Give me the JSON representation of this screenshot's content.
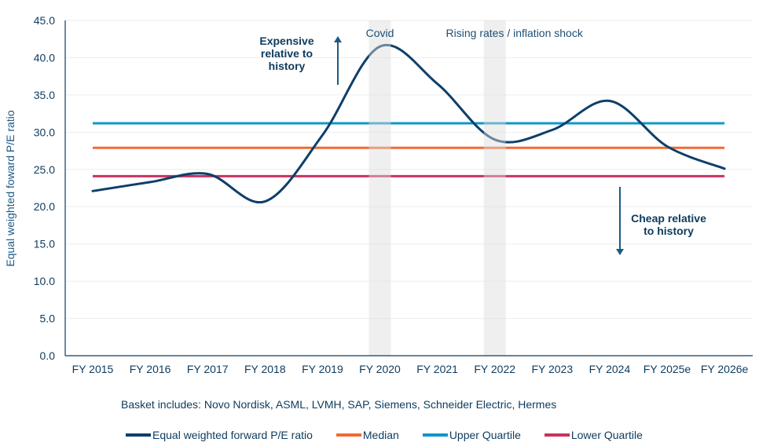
{
  "chart_data": {
    "type": "line",
    "title": "",
    "xlabel": "",
    "ylabel": "Equal weighted foward P/E ratio",
    "ylim": [
      0,
      45
    ],
    "yticks": [
      "0.0",
      "5.0",
      "10.0",
      "15.0",
      "20.0",
      "25.0",
      "30.0",
      "35.0",
      "40.0",
      "45.0"
    ],
    "ytick_values": [
      0,
      5,
      10,
      15,
      20,
      25,
      30,
      35,
      40,
      45
    ],
    "grid": true,
    "categories": [
      "FY 2015",
      "FY 2016",
      "FY 2017",
      "FY 2018",
      "FY 2019",
      "FY 2020",
      "FY 2021",
      "FY 2022",
      "FY 2023",
      "FY 2024",
      "FY 2025e",
      "FY 2026e"
    ],
    "series": [
      {
        "name": "Equal weighted forward P/E ratio",
        "color": "#0d3f6b",
        "smooth": true,
        "values": [
          22.1,
          23.3,
          24.4,
          20.7,
          29.6,
          41.5,
          36.5,
          29.0,
          30.3,
          34.2,
          28.1,
          25.1
        ]
      },
      {
        "name": "Median",
        "color": "#f26a35",
        "values": [
          27.9,
          27.9,
          27.9,
          27.9,
          27.9,
          27.9,
          27.9,
          27.9,
          27.9,
          27.9,
          27.9,
          27.9
        ]
      },
      {
        "name": "Upper Quartile",
        "color": "#0f97c8",
        "values": [
          31.2,
          31.2,
          31.2,
          31.2,
          31.2,
          31.2,
          31.2,
          31.2,
          31.2,
          31.2,
          31.2,
          31.2
        ]
      },
      {
        "name": "Lower Quartile",
        "color": "#c8325f",
        "values": [
          24.1,
          24.1,
          24.1,
          24.1,
          24.1,
          24.1,
          24.1,
          24.1,
          24.1,
          24.1,
          24.1,
          24.1
        ]
      }
    ],
    "shaded_periods": [
      {
        "label": "Covid",
        "category": "FY 2020"
      },
      {
        "label": "Rising rates / inflation shock",
        "category": "FY 2022"
      }
    ],
    "annotations": [
      {
        "text_lines": [
          "Expensive",
          "relative to",
          "history"
        ],
        "arrow": "up"
      },
      {
        "text_lines": [
          "Cheap relative",
          "to history"
        ],
        "arrow": "down"
      }
    ],
    "legend_position": "bottom",
    "note": "Basket includes: Novo Nordisk, ASML, LVMH, SAP, Siemens, Schneider Electric, Hermes"
  }
}
